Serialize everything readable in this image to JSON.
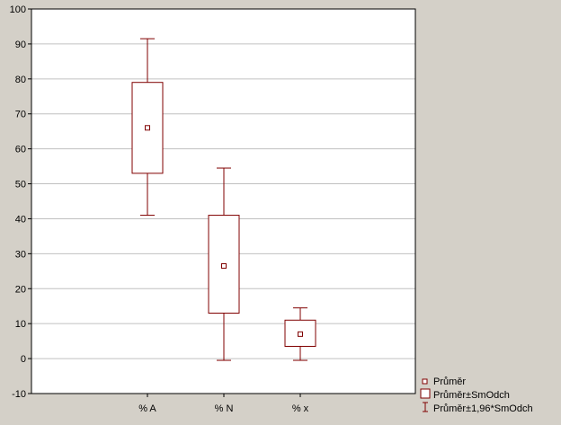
{
  "chart_data": {
    "type": "box",
    "title": "",
    "xlabel": "",
    "ylabel": "",
    "categories": [
      "% A",
      "% N",
      "% x"
    ],
    "ylim": [
      -10,
      100
    ],
    "yticks": [
      -10,
      0,
      10,
      20,
      30,
      40,
      50,
      60,
      70,
      80,
      90,
      100
    ],
    "grid": true,
    "boxes": [
      {
        "category": "% A",
        "mean": 66,
        "box_low": 53,
        "box_high": 79,
        "whisker_low": 41,
        "whisker_high": 91.5
      },
      {
        "category": "% N",
        "mean": 26.5,
        "box_low": 13,
        "box_high": 41,
        "whisker_low": -0.5,
        "whisker_high": 54.5
      },
      {
        "category": "% x",
        "mean": 7,
        "box_low": 3.5,
        "box_high": 11,
        "whisker_low": -0.5,
        "whisker_high": 14.5
      }
    ],
    "legend": {
      "position": "bottom-right",
      "entries": [
        "Průměr",
        "Průměr±SmOdch",
        "Průměr±1,96*SmOdch"
      ]
    },
    "colors": {
      "box": "#800000",
      "plot_bg": "#ffffff",
      "page_bg": "#d4d0c8",
      "grid": "#c0c0c0"
    }
  }
}
